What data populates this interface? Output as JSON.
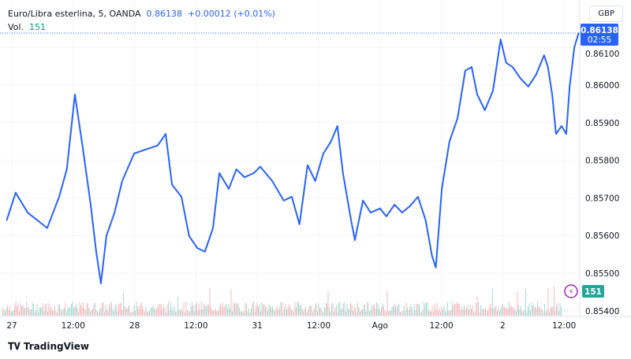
{
  "legend": {
    "symbol": "Euro/Libra esterlina, 5, OANDA",
    "last": "0.86138",
    "change": "+0.00012 (+0.01%)",
    "vol_label": "Vol.",
    "vol_value": "151"
  },
  "currency_button": "GBP",
  "price_badge": {
    "price": "0.86138",
    "countdown": "02:55"
  },
  "volume_badge": "151",
  "brand": "TradingView",
  "colors": {
    "line": "#2962ff",
    "vol_up": "#089981",
    "vol_down": "#f23645",
    "badge": "#2962ff",
    "vol_badge": "#26a69a"
  },
  "chart_data": {
    "type": "line",
    "title": "Euro/Libra esterlina, 5, OANDA",
    "x_ticks": [
      "27",
      "12:00",
      "28",
      "12:00",
      "31",
      "12:00",
      "Ago",
      "12:00",
      "2",
      "12:00"
    ],
    "y_ticks": [
      "0.85400",
      "0.85500",
      "0.85600",
      "0.85700",
      "0.85800",
      "0.85900",
      "0.86000",
      "0.86100"
    ],
    "ylim": [
      0.854,
      0.8617
    ],
    "grid": true,
    "points": [
      [
        "07-26 23:00",
        0.85641
      ],
      [
        "07-27 00:45",
        0.85714
      ],
      [
        "07-27 03:05",
        0.85661
      ],
      [
        "07-27 06:55",
        0.8562
      ],
      [
        "07-27 09:15",
        0.85703
      ],
      [
        "07-27 10:45",
        0.85776
      ],
      [
        "07-27 12:20",
        0.85975
      ],
      [
        "07-27 13:55",
        0.85829
      ],
      [
        "07-27 15:25",
        0.85682
      ],
      [
        "07-27 16:30",
        0.85557
      ],
      [
        "07-27 17:25",
        0.85473
      ],
      [
        "07-27 18:30",
        0.85599
      ],
      [
        "07-27 20:05",
        0.85661
      ],
      [
        "07-27 21:35",
        0.85745
      ],
      [
        "07-27 23:55",
        0.85818
      ],
      [
        "07-28 02:15",
        0.85829
      ],
      [
        "07-28 04:30",
        0.85839
      ],
      [
        "07-28 06:05",
        0.8587
      ],
      [
        "07-28 07:20",
        0.85735
      ],
      [
        "07-28 09:10",
        0.85703
      ],
      [
        "07-28 10:40",
        0.85599
      ],
      [
        "07-28 12:15",
        0.85567
      ],
      [
        "07-28 13:45",
        0.85557
      ],
      [
        "07-28 15:20",
        0.8562
      ],
      [
        "07-28 16:35",
        0.85766
      ],
      [
        "07-28 18:25",
        0.85724
      ],
      [
        "07-28 19:55",
        0.85776
      ],
      [
        "07-28 21:30",
        0.85755
      ],
      [
        "07-28 23:20",
        0.85766
      ],
      [
        "07-31 00:35",
        0.85783
      ],
      [
        "07-31 02:55",
        0.85745
      ],
      [
        "07-31 05:10",
        0.85693
      ],
      [
        "07-31 06:45",
        0.85703
      ],
      [
        "07-31 08:15",
        0.8563
      ],
      [
        "07-31 09:50",
        0.85787
      ],
      [
        "07-31 11:20",
        0.85745
      ],
      [
        "07-31 12:55",
        0.85818
      ],
      [
        "07-31 14:25",
        0.8585
      ],
      [
        "07-31 15:40",
        0.85891
      ],
      [
        "07-31 16:45",
        0.85766
      ],
      [
        "07-31 18:20",
        0.85641
      ],
      [
        "07-31 19:05",
        0.85588
      ],
      [
        "07-31 20:40",
        0.85693
      ],
      [
        "07-31 22:10",
        0.85661
      ],
      [
        "08-01 00:00",
        0.85672
      ],
      [
        "08-01 01:15",
        0.85651
      ],
      [
        "08-01 02:50",
        0.85682
      ],
      [
        "08-01 04:20",
        0.85661
      ],
      [
        "08-01 05:50",
        0.85678
      ],
      [
        "08-01 07:25",
        0.85703
      ],
      [
        "08-01 08:55",
        0.85641
      ],
      [
        "08-01 10:10",
        0.85546
      ],
      [
        "08-01 10:55",
        0.85515
      ],
      [
        "08-01 12:05",
        0.85724
      ],
      [
        "08-01 13:35",
        0.8585
      ],
      [
        "08-01 15:10",
        0.85912
      ],
      [
        "08-01 16:40",
        0.86038
      ],
      [
        "08-01 17:55",
        0.86048
      ],
      [
        "08-01 19:00",
        0.85975
      ],
      [
        "08-01 20:30",
        0.85933
      ],
      [
        "08-01 22:05",
        0.85985
      ],
      [
        "08-01 23:35",
        0.86121
      ],
      [
        "08-02 00:40",
        0.86059
      ],
      [
        "08-02 01:55",
        0.86048
      ],
      [
        "08-02 03:30",
        0.86017
      ],
      [
        "08-02 05:00",
        0.85996
      ],
      [
        "08-02 06:30",
        0.86027
      ],
      [
        "08-02 08:05",
        0.86079
      ],
      [
        "08-02 08:50",
        0.86048
      ],
      [
        "08-02 09:40",
        0.85975
      ],
      [
        "08-02 10:25",
        0.8587
      ],
      [
        "08-02 11:30",
        0.85891
      ],
      [
        "08-02 12:25",
        0.8587
      ],
      [
        "08-02 13:05",
        0.85996
      ],
      [
        "08-02 14:00",
        0.861
      ],
      [
        "08-02 14:50",
        0.86138
      ]
    ]
  }
}
